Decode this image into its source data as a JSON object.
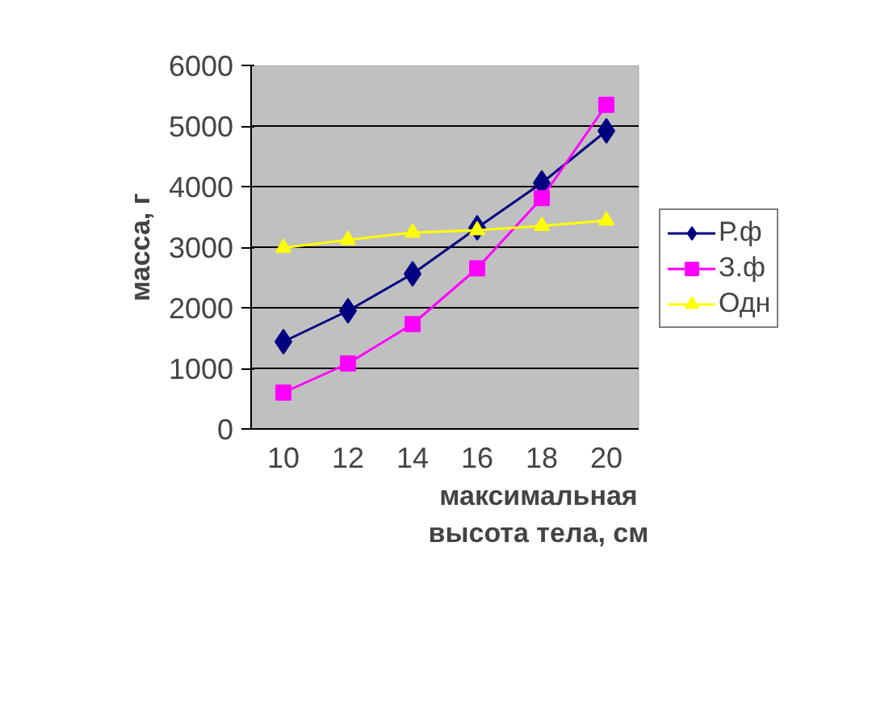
{
  "chart_data": {
    "type": "line",
    "xlabel": "максимальная высота тела, см",
    "ylabel": "масса, г",
    "categories": [
      "10",
      "12",
      "14",
      "16",
      "18",
      "20"
    ],
    "ylim": [
      0,
      6000
    ],
    "yticks": [
      0,
      1000,
      2000,
      3000,
      4000,
      5000,
      6000
    ],
    "grid": "y",
    "legend": "right",
    "series": [
      {
        "name": "Р.ф",
        "color": "#000080",
        "marker": "diamond",
        "values": [
          1440,
          1950,
          2560,
          3320,
          4060,
          4920
        ]
      },
      {
        "name": "З.ф",
        "color": "#ff00ff",
        "marker": "square",
        "values": [
          600,
          1080,
          1730,
          2650,
          3810,
          5350
        ]
      },
      {
        "name": "Одн",
        "color": "#ffff00",
        "marker": "triangle",
        "values": [
          2990,
          3120,
          3240,
          3280,
          3350,
          3440
        ]
      }
    ]
  }
}
